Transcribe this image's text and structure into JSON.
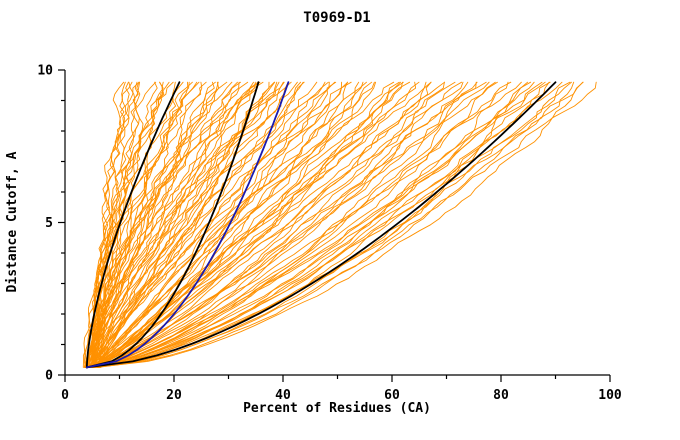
{
  "chart_data": {
    "type": "line",
    "title": "T0969-D1",
    "xlabel": "Percent of Residues (CA)",
    "ylabel": "Distance Cutoff, A",
    "xlim": [
      0,
      100
    ],
    "ylim": [
      0,
      10
    ],
    "x_ticks": [
      0,
      20,
      40,
      60,
      80,
      100
    ],
    "y_ticks": [
      0,
      5,
      10
    ],
    "x_minor_step": 10,
    "y_minor_step": 1,
    "grid": false,
    "legend": "none",
    "curve_y_start": 0.25,
    "curve_y_end": 9.6,
    "x_start_range": [
      3.5,
      6.5
    ],
    "jitter_seed": 20181201,
    "colors": {
      "model": "#ff9100",
      "reference": "#000000",
      "selected": "#1a1aae"
    },
    "series": {
      "model_curves_note": "each entry = [percent_at_top_cutoff, shape_power] for one orange model curve rising from ~4% at cutoff 0.25A to its top percent at cutoff 9.6A",
      "model_curves": [
        [
          9.5,
          1.7
        ],
        [
          10.5,
          1.6
        ],
        [
          11,
          1.3
        ],
        [
          12,
          1.4
        ],
        [
          12.5,
          1.8
        ],
        [
          13,
          1.5
        ],
        [
          13.5,
          1.5
        ],
        [
          14,
          1.2
        ],
        [
          15,
          1.6
        ],
        [
          15.5,
          1.3
        ],
        [
          16,
          1.1
        ],
        [
          17,
          1.7
        ],
        [
          17.5,
          1.4
        ],
        [
          18,
          1.3
        ],
        [
          19,
          1.5
        ],
        [
          19.5,
          1.2
        ],
        [
          20,
          1.6
        ],
        [
          21,
          1.35
        ],
        [
          22,
          1.0
        ],
        [
          22.5,
          1.45
        ],
        [
          23,
          1.3
        ],
        [
          24,
          1.8
        ],
        [
          24.5,
          1.15
        ],
        [
          25,
          1.5
        ],
        [
          26,
          1.25
        ],
        [
          27,
          1.4
        ],
        [
          27.5,
          1.1
        ],
        [
          28,
          1.7
        ],
        [
          28.5,
          1.35
        ],
        [
          29,
          1.2
        ],
        [
          30,
          1.45
        ],
        [
          31,
          1.0
        ],
        [
          31.5,
          1.55
        ],
        [
          32,
          1.3
        ],
        [
          33,
          1.15
        ],
        [
          33.5,
          1.4
        ],
        [
          34,
          1.5
        ],
        [
          35,
          1.1
        ],
        [
          36,
          1.35
        ],
        [
          36.5,
          0.95
        ],
        [
          37,
          1.6
        ],
        [
          37.5,
          1.1
        ],
        [
          38,
          1.0
        ],
        [
          39,
          1.3
        ],
        [
          39.5,
          1.45
        ],
        [
          40,
          1.2
        ],
        [
          40.5,
          0.9
        ],
        [
          41,
          1.25
        ],
        [
          41.5,
          1.4
        ],
        [
          42,
          1.05
        ],
        [
          43,
          1.3
        ],
        [
          44,
          0.95
        ],
        [
          44.5,
          1.2
        ],
        [
          45,
          1.1
        ],
        [
          46,
          0.9
        ],
        [
          47,
          1.15
        ],
        [
          47.5,
          1.0
        ],
        [
          48,
          0.85
        ],
        [
          49,
          1.1
        ],
        [
          50,
          0.8
        ],
        [
          51,
          1.05
        ],
        [
          52,
          0.9
        ],
        [
          52.5,
          1.2
        ],
        [
          53,
          0.95
        ],
        [
          54,
          1.0
        ],
        [
          55,
          0.8
        ],
        [
          56,
          1.1
        ],
        [
          57,
          0.9
        ],
        [
          57.5,
          1.0
        ],
        [
          58,
          0.85
        ],
        [
          59,
          1.05
        ],
        [
          60,
          0.9
        ],
        [
          61,
          0.75
        ],
        [
          62,
          1.0
        ],
        [
          62.5,
          0.85
        ],
        [
          63,
          0.95
        ],
        [
          64,
          0.8
        ],
        [
          65,
          1.0
        ],
        [
          66,
          0.7
        ],
        [
          67,
          0.9
        ],
        [
          68,
          0.8
        ],
        [
          69,
          0.95
        ],
        [
          70,
          0.75
        ],
        [
          71,
          0.85
        ],
        [
          72,
          0.7
        ],
        [
          73,
          0.9
        ],
        [
          74,
          0.75
        ],
        [
          75,
          0.85
        ],
        [
          76,
          0.65
        ],
        [
          77,
          0.8
        ],
        [
          78,
          0.7
        ],
        [
          79,
          0.85
        ],
        [
          80,
          0.7
        ],
        [
          81,
          0.75
        ],
        [
          82,
          0.6
        ],
        [
          83,
          0.8
        ],
        [
          84,
          0.65
        ],
        [
          85,
          0.75
        ],
        [
          86,
          0.6
        ],
        [
          87,
          0.7
        ],
        [
          88,
          0.65
        ],
        [
          89,
          0.75
        ],
        [
          90,
          0.6
        ],
        [
          91,
          0.68
        ],
        [
          92,
          0.62
        ],
        [
          93,
          0.7
        ],
        [
          94,
          0.6
        ],
        [
          95,
          0.66
        ],
        [
          96,
          0.62
        ],
        [
          97,
          0.58
        ]
      ],
      "reference_curves_note": "black curves: [percent_at_top_cutoff, shape_power]",
      "reference_curves": [
        [
          21,
          1.5
        ],
        [
          35.5,
          0.5
        ],
        [
          90,
          0.6
        ]
      ],
      "selected_curve_note": "blue curve: [percent_at_top_cutoff, shape_power]",
      "selected_curve": [
        [
          41,
          0.5
        ]
      ]
    }
  }
}
